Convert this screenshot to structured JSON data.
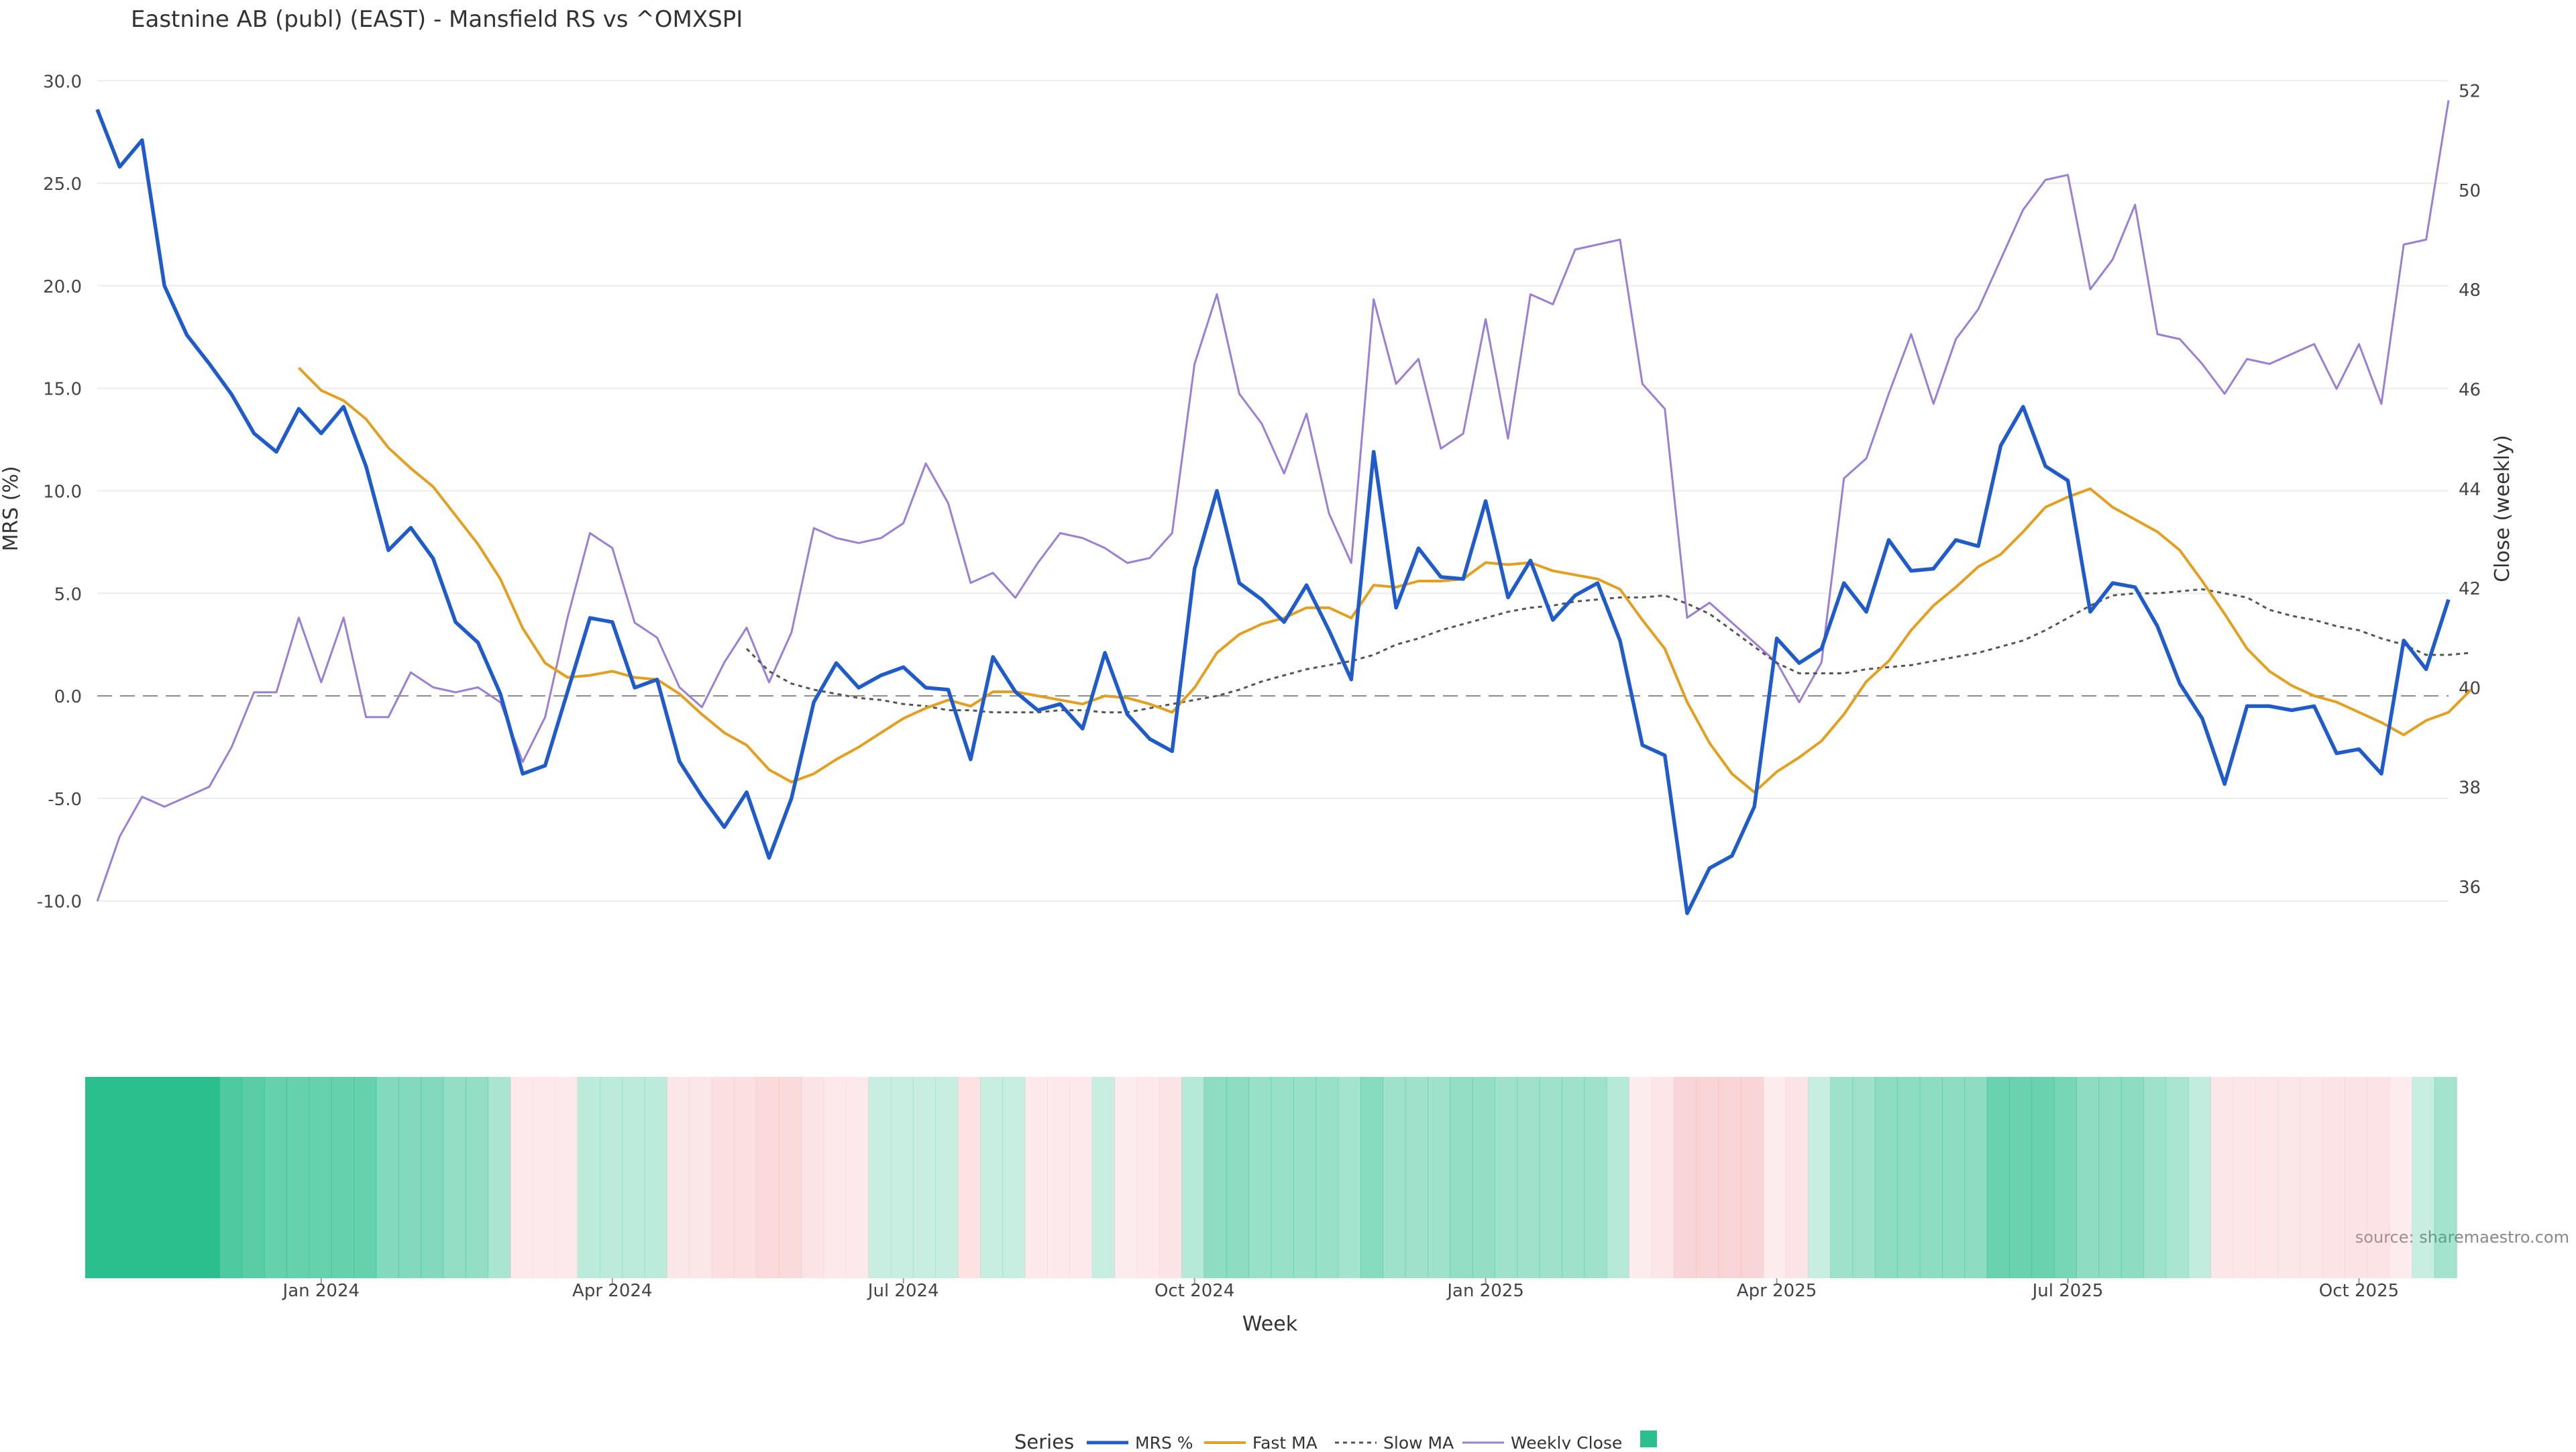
{
  "chart_data": {
    "type": "line",
    "title": "Eastnine AB (publ) (EAST) - Mansfield RS vs ^OMXSPI",
    "xlabel": "Week",
    "ylabel": "MRS (%)",
    "y2label": "Close (weekly)",
    "source": "source: sharemaestro.com",
    "legend_title": "Series",
    "legend_position": "bottom-center",
    "y_ticks": [
      "30.0",
      "25.0",
      "20.0",
      "15.0",
      "10.0",
      "5.0",
      "0.0",
      "-5.0",
      "-10.0"
    ],
    "y2_ticks": [
      "52",
      "50",
      "48",
      "46",
      "44",
      "42",
      "40",
      "38",
      "36"
    ],
    "x_ticks": [
      "Jan 2024",
      "Apr 2024",
      "Jul 2024",
      "Oct 2024",
      "Jan 2025",
      "Apr 2025",
      "Jul 2025",
      "Oct 2025"
    ],
    "x_tick_index": [
      10,
      23,
      36,
      49,
      62,
      75,
      88,
      101
    ],
    "ylim": [
      -10.5,
      30.5
    ],
    "y2lim": [
      35.5,
      52.4
    ],
    "colors": {
      "mrs": "#1f5bc9",
      "fast": "#e3a020",
      "slow": "#555555",
      "close": "#9b7fd4",
      "pos": "#2bbf8e",
      "neg": "#f5a3a8"
    },
    "series": [
      {
        "name": "MRS %",
        "values": [
          28.6,
          25.8,
          27.1,
          20.0,
          17.6,
          16.2,
          14.7,
          12.8,
          11.9,
          14.0,
          12.8,
          14.1,
          11.2,
          7.1,
          8.2,
          6.7,
          3.6,
          2.6,
          0.1,
          -3.8,
          -3.4,
          0.2,
          3.8,
          3.6,
          0.4,
          0.8,
          -3.2,
          -4.9,
          -6.4,
          -4.7,
          -7.9,
          -5.0,
          -0.3,
          1.6,
          0.4,
          1.0,
          1.4,
          0.4,
          0.3,
          -3.1,
          1.9,
          0.2,
          -0.7,
          -0.4,
          -1.6,
          2.1,
          -0.9,
          -2.1,
          -2.7,
          6.2,
          10.0,
          5.5,
          4.7,
          3.6,
          5.4,
          3.2,
          0.8,
          11.9,
          4.3,
          7.2,
          5.8,
          5.7,
          9.5,
          4.8,
          6.6,
          3.7,
          4.9,
          5.5,
          2.7,
          -2.4,
          -2.9,
          -10.6,
          -8.4,
          -7.8,
          -5.4,
          2.8,
          1.6,
          2.3,
          5.5,
          4.1,
          7.6,
          6.1,
          6.2,
          7.6,
          7.3,
          12.2,
          14.1,
          11.2,
          10.5,
          4.1,
          5.5,
          5.3,
          3.4,
          0.6,
          -1.1,
          -4.3,
          -0.5,
          -0.5,
          -0.7,
          -0.5,
          -2.8,
          -2.6,
          -3.8,
          2.7,
          1.3,
          4.7
        ]
      },
      {
        "name": "Fast MA",
        "start": 9,
        "values": [
          16.0,
          14.9,
          14.4,
          13.5,
          12.1,
          11.1,
          10.2,
          8.8,
          7.4,
          5.7,
          3.3,
          1.6,
          0.9,
          1.0,
          1.2,
          0.9,
          0.8,
          0.1,
          -0.9,
          -1.8,
          -2.4,
          -3.6,
          -4.2,
          -3.8,
          -3.1,
          -2.5,
          -1.8,
          -1.1,
          -0.6,
          -0.2,
          -0.5,
          0.2,
          0.2,
          0.0,
          -0.2,
          -0.4,
          0.0,
          -0.1,
          -0.4,
          -0.8,
          0.4,
          2.1,
          3.0,
          3.5,
          3.8,
          4.3,
          4.3,
          3.8,
          5.4,
          5.3,
          5.6,
          5.6,
          5.7,
          6.5,
          6.4,
          6.5,
          6.1,
          5.9,
          5.7,
          5.2,
          3.7,
          2.3,
          -0.3,
          -2.3,
          -3.8,
          -4.7,
          -3.7,
          -3.0,
          -2.2,
          -0.9,
          0.7,
          1.7,
          3.2,
          4.4,
          5.3,
          6.3,
          6.9,
          8.0,
          9.2,
          9.7,
          10.1,
          9.2,
          8.6,
          8.0,
          7.1,
          5.6,
          4.0,
          2.3,
          1.2,
          0.5,
          0.0,
          -0.3,
          -0.8,
          -1.3,
          -1.9,
          -1.2,
          -0.8,
          0.3
        ]
      },
      {
        "name": "Slow MA",
        "start": 29,
        "values": [
          2.3,
          1.2,
          0.6,
          0.3,
          0.1,
          -0.1,
          -0.2,
          -0.4,
          -0.5,
          -0.7,
          -0.7,
          -0.8,
          -0.8,
          -0.8,
          -0.7,
          -0.7,
          -0.8,
          -0.8,
          -0.6,
          -0.4,
          -0.2,
          0.0,
          0.3,
          0.7,
          1.0,
          1.3,
          1.5,
          1.7,
          2.0,
          2.5,
          2.8,
          3.2,
          3.5,
          3.8,
          4.1,
          4.3,
          4.4,
          4.6,
          4.7,
          4.8,
          4.8,
          4.9,
          4.5,
          4.0,
          3.2,
          2.4,
          1.6,
          1.1,
          1.1,
          1.1,
          1.3,
          1.4,
          1.5,
          1.7,
          1.9,
          2.1,
          2.4,
          2.7,
          3.2,
          3.8,
          4.4,
          4.9,
          5.0,
          5.0,
          5.1,
          5.2,
          5.0,
          4.8,
          4.2,
          3.9,
          3.7,
          3.4,
          3.2,
          2.8,
          2.5,
          2.0,
          2.0,
          2.1
        ]
      },
      {
        "name": "Weekly Close",
        "values": [
          35.7,
          37.0,
          37.8,
          37.6,
          37.8,
          38.0,
          38.8,
          39.9,
          39.9,
          41.4,
          40.1,
          41.4,
          39.4,
          39.4,
          40.3,
          40.0,
          39.9,
          40.0,
          39.7,
          38.5,
          39.4,
          41.4,
          43.1,
          42.8,
          41.3,
          41.0,
          40.0,
          39.6,
          40.5,
          41.2,
          40.1,
          41.1,
          43.2,
          43.0,
          42.9,
          43.0,
          43.3,
          44.5,
          43.7,
          42.1,
          42.3,
          41.8,
          42.5,
          43.1,
          43.0,
          42.8,
          42.5,
          42.6,
          43.1,
          46.5,
          47.9,
          45.9,
          45.3,
          44.3,
          45.5,
          43.5,
          42.5,
          47.8,
          46.1,
          46.6,
          44.8,
          45.1,
          47.4,
          45.0,
          47.9,
          47.7,
          48.8,
          48.9,
          49.0,
          46.1,
          45.6,
          41.4,
          41.7,
          41.3,
          40.9,
          40.5,
          39.7,
          40.5,
          44.2,
          44.6,
          45.9,
          47.1,
          45.7,
          47.0,
          47.6,
          48.6,
          49.6,
          50.2,
          50.3,
          48.0,
          48.6,
          49.7,
          47.1,
          47.0,
          46.5,
          45.9,
          46.6,
          46.5,
          46.7,
          46.9,
          46.0,
          46.9,
          45.7,
          48.9,
          49.0,
          51.8
        ]
      },
      {
        "name": "",
        "type": "heatmap",
        "values": [
          30.0,
          30.0,
          30.0,
          30.0,
          30.0,
          30.0,
          24.0,
          22.0,
          20.0,
          20.0,
          20.0,
          20.0,
          20.0,
          15.0,
          15.0,
          15.0,
          12.0,
          12.0,
          8.0,
          -2.0,
          -2.0,
          -2.0,
          5.0,
          5.0,
          5.0,
          5.0,
          -3.0,
          -3.0,
          -6.0,
          -6.0,
          -8.0,
          -8.0,
          -4.0,
          -2.0,
          -2.0,
          3.0,
          3.0,
          3.0,
          3.0,
          -5.0,
          3.0,
          3.0,
          -2.0,
          -2.0,
          -2.0,
          3.0,
          -1.0,
          -2.0,
          -4.0,
          6.0,
          13.0,
          13.0,
          11.0,
          11.0,
          11.0,
          11.0,
          9.0,
          14.0,
          10.0,
          10.0,
          10.0,
          12.0,
          12.0,
          10.0,
          10.0,
          10.0,
          10.0,
          10.0,
          6.0,
          -1.0,
          -3.0,
          -10.0,
          -10.0,
          -10.0,
          -10.0,
          -1.0,
          -4.0,
          3.0,
          10.0,
          10.0,
          13.0,
          13.0,
          13.0,
          13.0,
          13.0,
          19.0,
          19.0,
          19.0,
          17.0,
          13.0,
          13.0,
          13.0,
          10.0,
          8.0,
          4.0,
          -3.0,
          -3.0,
          -3.0,
          -3.0,
          -3.0,
          -4.0,
          -4.0,
          -4.0,
          -1.0,
          3.0,
          9.0
        ]
      }
    ],
    "grid": true
  }
}
